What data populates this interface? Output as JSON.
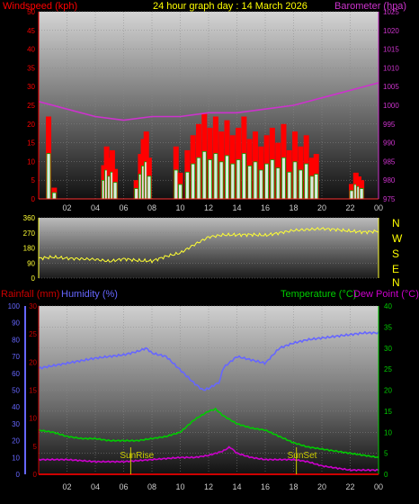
{
  "header": {
    "windspeed_label": "Windspeed (kph)",
    "title": "24 hour graph day : 14 March 2026",
    "barometer_label": "Barometer (hpa)"
  },
  "middle": {
    "compass": [
      "N",
      "W",
      "S",
      "E",
      "N"
    ]
  },
  "bottom_header": {
    "rainfall_label": "Rainfall (mm)",
    "humidity_label": "Humidity (%)",
    "temperature_label": "Temperature (°C)",
    "dewpoint_label": "Dew Point (°C)"
  },
  "annotations": {
    "sunrise": "SunRise",
    "sunset": "SunSet"
  },
  "colors": {
    "windspeed": "#ff0000",
    "barometer": "#cc33cc",
    "direction": "#ffff33",
    "rainfall": "#cc0000",
    "humidity": "#6666ff",
    "temperature": "#00cc00",
    "dewpoint": "#cc00cc",
    "gust": "#00aa00",
    "avg": "#ffffff"
  },
  "chart_data": [
    {
      "type": "line",
      "title": "24 hour graph day : 14 March 2026",
      "x_ticks": [
        "02",
        "04",
        "06",
        "08",
        "10",
        "12",
        "14",
        "16",
        "18",
        "20",
        "22",
        "00"
      ],
      "left_axis": {
        "label": "Windspeed (kph)",
        "ylim": [
          0,
          50
        ],
        "ticks": [
          0,
          5,
          10,
          15,
          20,
          25,
          30,
          35,
          40,
          45,
          50
        ]
      },
      "right_axis": {
        "label": "Barometer (hpa)",
        "ylim": [
          975,
          1025
        ],
        "ticks": [
          975,
          980,
          985,
          990,
          995,
          1000,
          1005,
          1010,
          1015,
          1020,
          1025
        ]
      },
      "series": [
        {
          "name": "Windspeed (kph)",
          "axis": "left",
          "style": "bar",
          "x": [
            0.7,
            1.1,
            4.6,
            4.8,
            5.0,
            5.2,
            5.4,
            6.9,
            7.2,
            7.4,
            7.6,
            7.8,
            9.7,
            10.0,
            10.5,
            10.9,
            11.3,
            11.7,
            12.1,
            12.5,
            12.9,
            13.3,
            13.7,
            14.1,
            14.5,
            14.9,
            15.3,
            15.7,
            16.1,
            16.5,
            16.9,
            17.3,
            17.7,
            18.1,
            18.5,
            18.9,
            19.3,
            19.6,
            22.1,
            22.4,
            22.6,
            22.8
          ],
          "values": [
            22,
            3,
            9,
            14,
            11,
            13,
            8,
            5,
            12,
            16,
            18,
            11,
            14,
            7,
            13,
            17,
            20,
            23,
            19,
            22,
            18,
            21,
            17,
            19,
            22,
            16,
            18,
            14,
            17,
            19,
            15,
            20,
            13,
            18,
            14,
            17,
            11,
            12,
            4,
            7,
            6,
            5
          ]
        },
        {
          "name": "Barometer (hpa)",
          "axis": "right",
          "x": [
            0,
            2,
            4,
            6,
            8,
            10,
            12,
            14,
            16,
            18,
            20,
            22,
            24
          ],
          "values": [
            1001,
            999,
            997,
            996,
            997,
            997,
            998,
            998,
            999,
            1000,
            1002,
            1004,
            1006
          ]
        }
      ]
    },
    {
      "type": "line",
      "ylim": [
        0,
        360
      ],
      "y_ticks": [
        0,
        90,
        180,
        270,
        360
      ],
      "compass_labels": [
        "N",
        "W",
        "S",
        "E",
        "N"
      ],
      "series": [
        {
          "name": "Wind direction",
          "x": [
            0,
            1,
            2,
            3,
            4,
            5,
            6,
            7,
            8,
            9,
            10,
            11,
            12,
            13,
            14,
            15,
            16,
            17,
            18,
            19,
            20,
            21,
            22,
            23,
            24
          ],
          "values": [
            118,
            125,
            118,
            115,
            112,
            100,
            115,
            105,
            102,
            130,
            150,
            200,
            245,
            258,
            258,
            260,
            255,
            270,
            285,
            290,
            295,
            290,
            280,
            275,
            280
          ]
        }
      ]
    },
    {
      "type": "line",
      "left_axis_rain": {
        "label": "Rainfall (mm)",
        "ylim": [
          0,
          30
        ],
        "ticks": [
          0,
          5,
          10,
          15,
          20,
          25,
          30
        ]
      },
      "left_axis_humidity": {
        "label": "Humidity (%)",
        "ylim": [
          0,
          100
        ],
        "ticks": [
          0,
          10,
          20,
          30,
          40,
          50,
          60,
          70,
          80,
          90,
          100
        ]
      },
      "right_axis": {
        "label": "Temperature (°C) / Dew Point (°C)",
        "ylim": [
          0,
          40
        ],
        "ticks": [
          0,
          5,
          10,
          15,
          20,
          25,
          30,
          35,
          40
        ]
      },
      "x_ticks": [
        "02",
        "04",
        "06",
        "08",
        "10",
        "12",
        "14",
        "16",
        "18",
        "20",
        "22",
        "00"
      ],
      "series": [
        {
          "name": "Humidity (%)",
          "axis": "humidity",
          "x": [
            0,
            2,
            4,
            6,
            7,
            7.6,
            8,
            9,
            10,
            11,
            11.6,
            12,
            12.8,
            13,
            14,
            15,
            16,
            17,
            18,
            19,
            20,
            21,
            22,
            23,
            24
          ],
          "values": [
            63,
            66,
            69,
            71,
            73,
            75,
            72,
            70,
            62,
            54,
            50,
            51,
            55,
            63,
            70,
            68,
            66,
            75,
            78,
            80,
            81,
            82,
            83,
            84,
            84
          ]
        },
        {
          "name": "Temperature (°C)",
          "axis": "right",
          "x": [
            0,
            1,
            2,
            3,
            4,
            5,
            6,
            7,
            8,
            9,
            10,
            11,
            12,
            12.5,
            13,
            14,
            15,
            16,
            17,
            18,
            19,
            20,
            21,
            22,
            23,
            24
          ],
          "values": [
            10.5,
            10,
            9,
            8.5,
            8.5,
            8,
            8,
            8,
            8.5,
            9,
            10,
            13,
            15,
            15.5,
            14,
            12,
            11,
            10.5,
            9,
            7.5,
            6.5,
            6,
            5.5,
            5,
            4.5,
            4
          ]
        },
        {
          "name": "Dew Point (°C)",
          "axis": "right",
          "x": [
            0,
            2,
            4,
            6,
            8,
            10,
            11,
            12,
            13,
            13.5,
            14,
            15,
            16,
            17,
            18,
            19,
            20,
            21,
            22,
            23,
            24
          ],
          "values": [
            3.5,
            3.5,
            3,
            3,
            3.5,
            4,
            4,
            4.5,
            5.5,
            6.5,
            5,
            4,
            3.5,
            3.5,
            3.5,
            3,
            2,
            1.5,
            1,
            1,
            1
          ]
        }
      ],
      "annotations": [
        {
          "label": "SunRise",
          "x": 6.5
        },
        {
          "label": "SunSet",
          "x": 18.2
        }
      ]
    }
  ]
}
